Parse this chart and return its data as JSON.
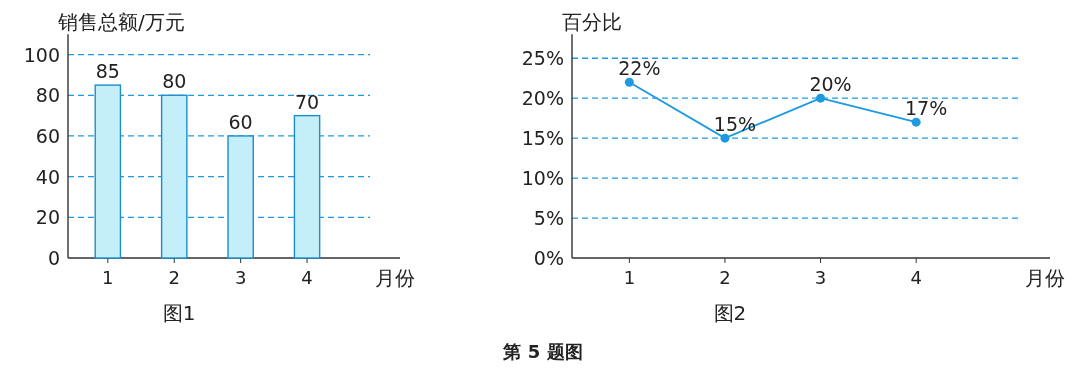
{
  "chart_data": [
    {
      "type": "bar",
      "title": "图1",
      "ylabel": "销售总额/万元",
      "xlabel": "月份",
      "categories": [
        "1",
        "2",
        "3",
        "4"
      ],
      "values": [
        85,
        80,
        60,
        70
      ],
      "color": "#c4eef8",
      "ylim": [
        0,
        110
      ],
      "yticks": [
        0,
        20,
        40,
        60,
        80,
        100
      ],
      "grid": "y",
      "data_labels": true
    },
    {
      "type": "line",
      "title": "图2",
      "ylabel": "百分比",
      "xlabel": "月份",
      "categories": [
        "1",
        "2",
        "3",
        "4"
      ],
      "values": [
        22,
        15,
        20,
        17
      ],
      "value_labels": [
        "22%",
        "15%",
        "20%",
        "17%"
      ],
      "color": "#1e9be0",
      "marker": "circle",
      "ylim": [
        0,
        28
      ],
      "yticks": [
        {
          "value": 0,
          "label": "0%"
        },
        {
          "value": 5,
          "label": "5%"
        },
        {
          "value": 10,
          "label": "10%"
        },
        {
          "value": 15,
          "label": "15%"
        },
        {
          "value": 20,
          "label": "20%"
        },
        {
          "value": 25,
          "label": "25%"
        }
      ],
      "grid": "y",
      "annotations": [
        "第 5 题图"
      ]
    }
  ]
}
